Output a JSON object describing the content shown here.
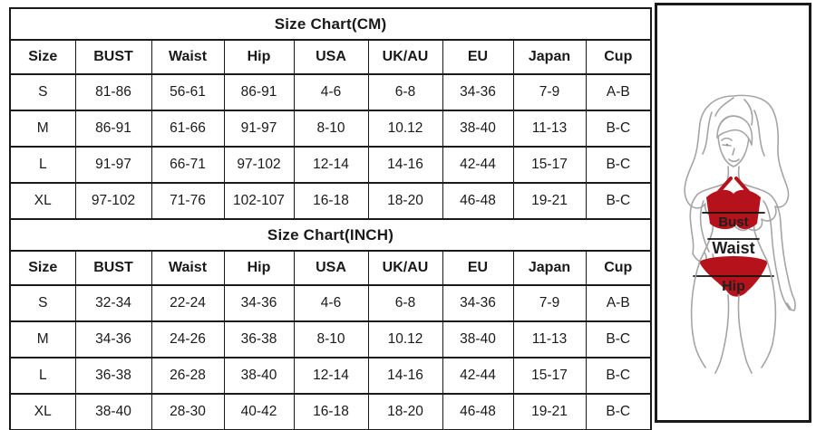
{
  "tables": [
    {
      "title": "Size Chart(CM)",
      "columns": [
        "Size",
        "BUST",
        "Waist",
        "Hip",
        "USA",
        "UK/AU",
        "EU",
        "Japan",
        "Cup"
      ],
      "rows": [
        [
          "S",
          "81-86",
          "56-61",
          "86-91",
          "4-6",
          "6-8",
          "34-36",
          "7-9",
          "A-B"
        ],
        [
          "M",
          "86-91",
          "61-66",
          "91-97",
          "8-10",
          "10.12",
          "38-40",
          "11-13",
          "B-C"
        ],
        [
          "L",
          "91-97",
          "66-71",
          "97-102",
          "12-14",
          "14-16",
          "42-44",
          "15-17",
          "B-C"
        ],
        [
          "XL",
          "97-102",
          "71-76",
          "102-107",
          "16-18",
          "18-20",
          "46-48",
          "19-21",
          "B-C"
        ]
      ]
    },
    {
      "title": "Size Chart(INCH)",
      "columns": [
        "Size",
        "BUST",
        "Waist",
        "Hip",
        "USA",
        "UK/AU",
        "EU",
        "Japan",
        "Cup"
      ],
      "rows": [
        [
          "S",
          "32-34",
          "22-24",
          "34-36",
          "4-6",
          "6-8",
          "34-36",
          "7-9",
          "A-B"
        ],
        [
          "M",
          "34-36",
          "24-26",
          "36-38",
          "8-10",
          "10.12",
          "38-40",
          "11-13",
          "B-C"
        ],
        [
          "L",
          "36-38",
          "26-28",
          "38-40",
          "12-14",
          "14-16",
          "42-44",
          "15-17",
          "B-C"
        ],
        [
          "XL",
          "38-40",
          "28-30",
          "40-42",
          "16-18",
          "18-20",
          "46-48",
          "19-21",
          "B-C"
        ]
      ]
    }
  ],
  "figure": {
    "bust_label": "Bust",
    "waist_label": "Waist",
    "hip_label": "Hip",
    "colors": {
      "bikini_red": "#b5121c",
      "sketch_line": "#a5a5a5",
      "measure_line": "#111111",
      "label_text": "#1f1f1f"
    }
  }
}
